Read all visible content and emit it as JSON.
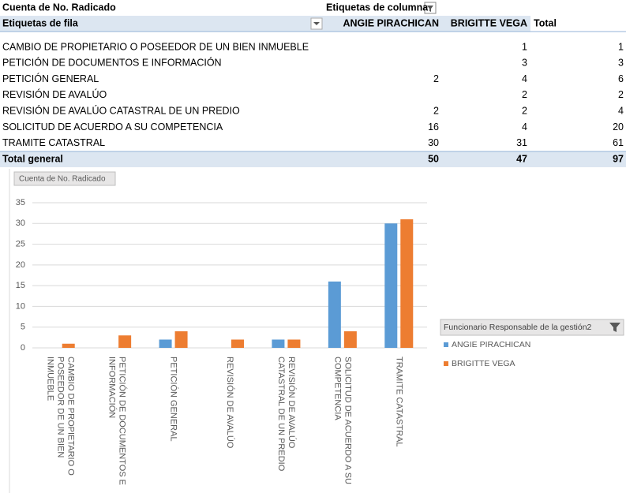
{
  "table": {
    "title": "Cuenta de No. Radicado",
    "column_label": "Etiquetas de columna",
    "header": [
      "Etiquetas de fila",
      "ANGIE PIRACHICAN",
      "BRIGITTE VEGA",
      "Total"
    ],
    "rows": [
      [
        "CAMBIO DE PROPIETARIO O POSEEDOR DE UN BIEN INMUEBLE",
        null,
        1,
        1
      ],
      [
        "PETICIÓN DE DOCUMENTOS E INFORMACIÓN",
        null,
        3,
        3
      ],
      [
        "PETICIÓN GENERAL",
        2,
        4,
        6
      ],
      [
        "REVISIÓN DE AVALÚO",
        null,
        2,
        2
      ],
      [
        "REVISIÓN DE AVALÚO CATASTRAL DE UN PREDIO",
        2,
        2,
        4
      ],
      [
        "SOLICITUD DE ACUERDO A SU COMPETENCIA",
        16,
        4,
        20
      ],
      [
        "TRAMITE CATASTRAL",
        30,
        31,
        61
      ]
    ],
    "total": [
      "Total general",
      50,
      47,
      97
    ]
  },
  "chart_data": {
    "type": "bar",
    "title": "Cuenta de No. Radicado",
    "legend_title": "Funcionario Responsable de la gestión2",
    "categories": [
      "CAMBIO DE PROPIETARIO O POSEEDOR DE UN BIEN INMUEBLE",
      "PETICIÓN DE DOCUMENTOS E INFORMACIÓN",
      "PETICIÓN GENERAL",
      "REVISIÓN DE AVALÚO",
      "REVISIÓN DE AVALÚO CATASTRAL DE UN PREDIO",
      "SOLICITUD DE ACUERDO A SU COMPETENCIA",
      "TRAMITE CATASTRAL"
    ],
    "series": [
      {
        "name": "ANGIE PIRACHICAN",
        "color": "#5b9bd5",
        "values": [
          null,
          null,
          2,
          null,
          2,
          16,
          30
        ]
      },
      {
        "name": "BRIGITTE VEGA",
        "color": "#ed7d31",
        "values": [
          1,
          3,
          4,
          2,
          2,
          4,
          31
        ]
      }
    ],
    "ylim": [
      0,
      35
    ],
    "yticks": [
      0,
      5,
      10,
      15,
      20,
      25,
      30,
      35
    ],
    "grid": true,
    "legend": "right"
  }
}
